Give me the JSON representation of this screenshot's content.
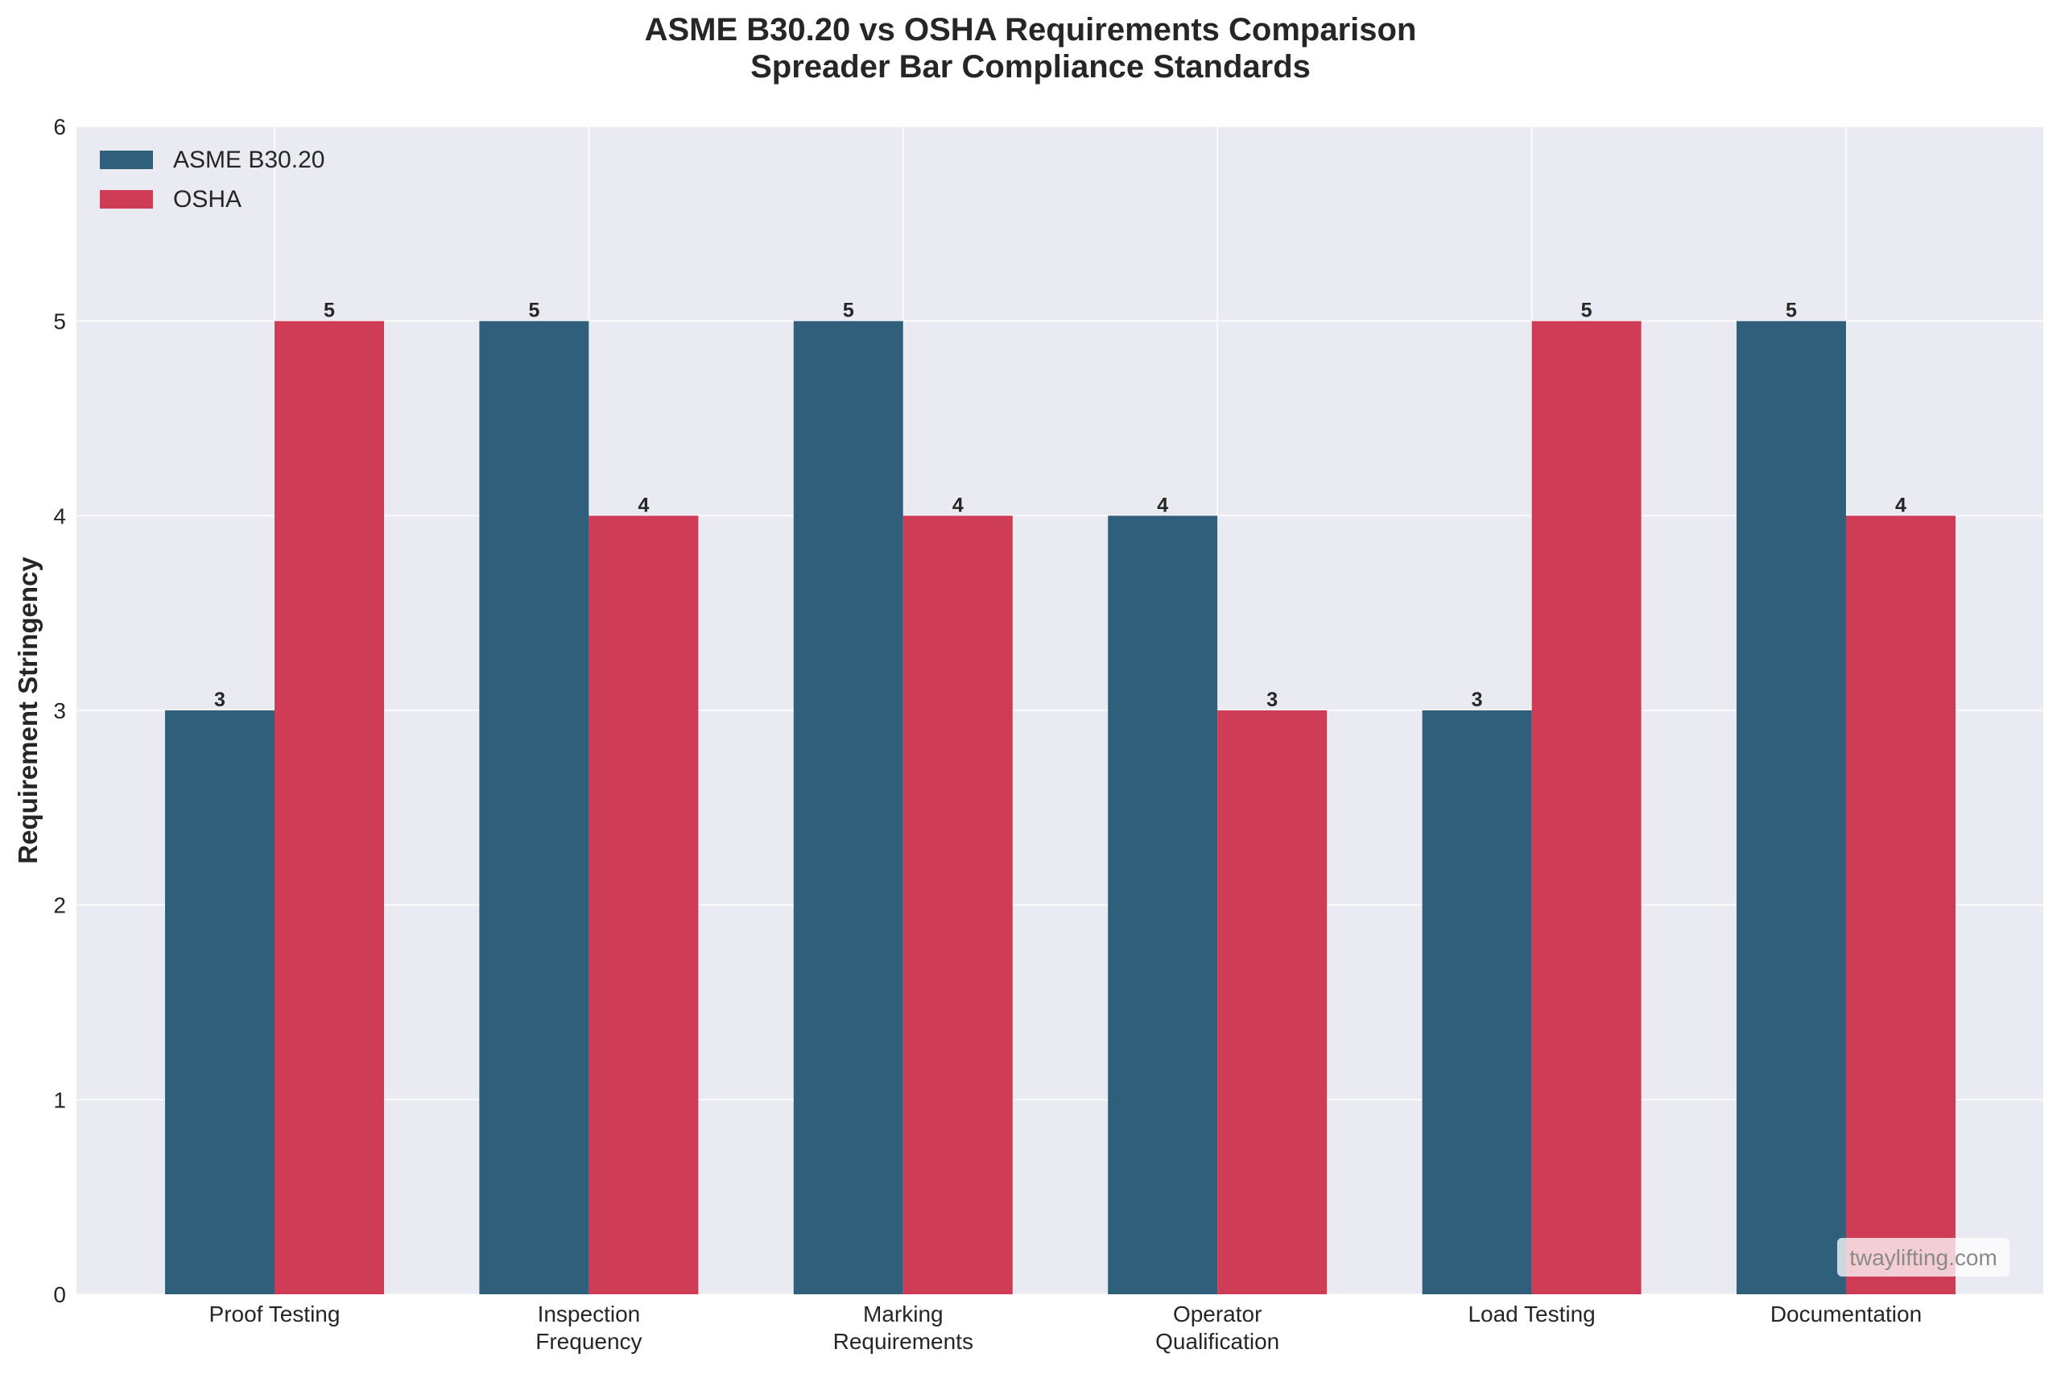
{
  "chart_data": {
    "type": "bar",
    "title": "ASME B30.20 vs OSHA Requirements Comparison",
    "subtitle": "Spreader Bar Compliance Standards",
    "xlabel": "",
    "ylabel": "Requirement Stringency",
    "ylim": [
      0,
      6
    ],
    "yticks": [
      "0",
      "1",
      "2",
      "3",
      "4",
      "5",
      "6"
    ],
    "grid": true,
    "legend_position": "top-left",
    "categories": [
      [
        "Proof Testing"
      ],
      [
        "Inspection",
        "Frequency"
      ],
      [
        "Marking",
        "Requirements"
      ],
      [
        "Operator",
        "Qualification"
      ],
      [
        "Load Testing"
      ],
      [
        "Documentation"
      ]
    ],
    "series": [
      {
        "name": "ASME B30.20",
        "color": "#305f7c",
        "values": [
          3,
          5,
          5,
          4,
          3,
          5
        ]
      },
      {
        "name": "OSHA",
        "color": "#cf3c55",
        "values": [
          5,
          4,
          4,
          3,
          5,
          4
        ]
      }
    ]
  },
  "watermark": "twaylifting.com",
  "colors": {
    "plot_background": "#eaeaf2",
    "grid": "#ffffff",
    "text": "#262626"
  }
}
